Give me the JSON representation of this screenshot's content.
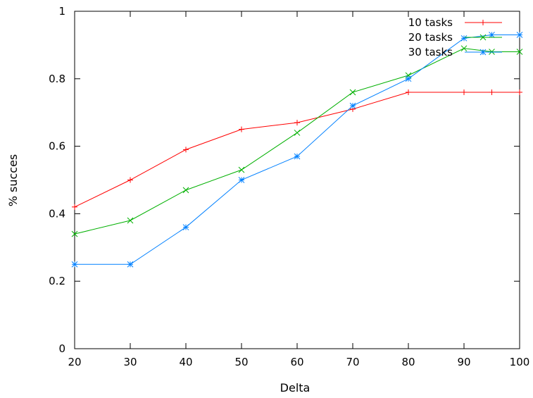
{
  "chart_data": {
    "type": "line",
    "xlabel": "Delta",
    "ylabel": "% succes",
    "xlim": [
      20,
      100
    ],
    "ylim": [
      0,
      1
    ],
    "xticks": [
      20,
      30,
      40,
      50,
      60,
      70,
      80,
      90,
      100
    ],
    "yticks": [
      0,
      0.2,
      0.4,
      0.6,
      0.8,
      1
    ],
    "ytick_labels": [
      "0",
      "0.2",
      "0.4",
      "0.6",
      "0.8",
      "1"
    ],
    "legend_position": "top-right",
    "grid": false,
    "series": [
      {
        "name": "10 tasks",
        "color": "#ff0000",
        "marker": "plus",
        "x": [
          20,
          30,
          40,
          50,
          60,
          70,
          80,
          90,
          95,
          100
        ],
        "y": [
          0.42,
          0.5,
          0.59,
          0.65,
          0.67,
          0.71,
          0.76,
          0.76,
          0.76,
          0.76
        ]
      },
      {
        "name": "20 tasks",
        "color": "#00b000",
        "marker": "cross",
        "x": [
          20,
          30,
          40,
          50,
          60,
          70,
          80,
          90,
          95,
          100
        ],
        "y": [
          0.34,
          0.38,
          0.47,
          0.53,
          0.64,
          0.76,
          0.81,
          0.89,
          0.88,
          0.88
        ]
      },
      {
        "name": "30 tasks",
        "color": "#0080ff",
        "marker": "star",
        "x": [
          20,
          30,
          40,
          50,
          60,
          70,
          80,
          90,
          95,
          100
        ],
        "y": [
          0.25,
          0.25,
          0.36,
          0.5,
          0.57,
          0.72,
          0.8,
          0.92,
          0.93,
          0.93
        ]
      }
    ]
  }
}
